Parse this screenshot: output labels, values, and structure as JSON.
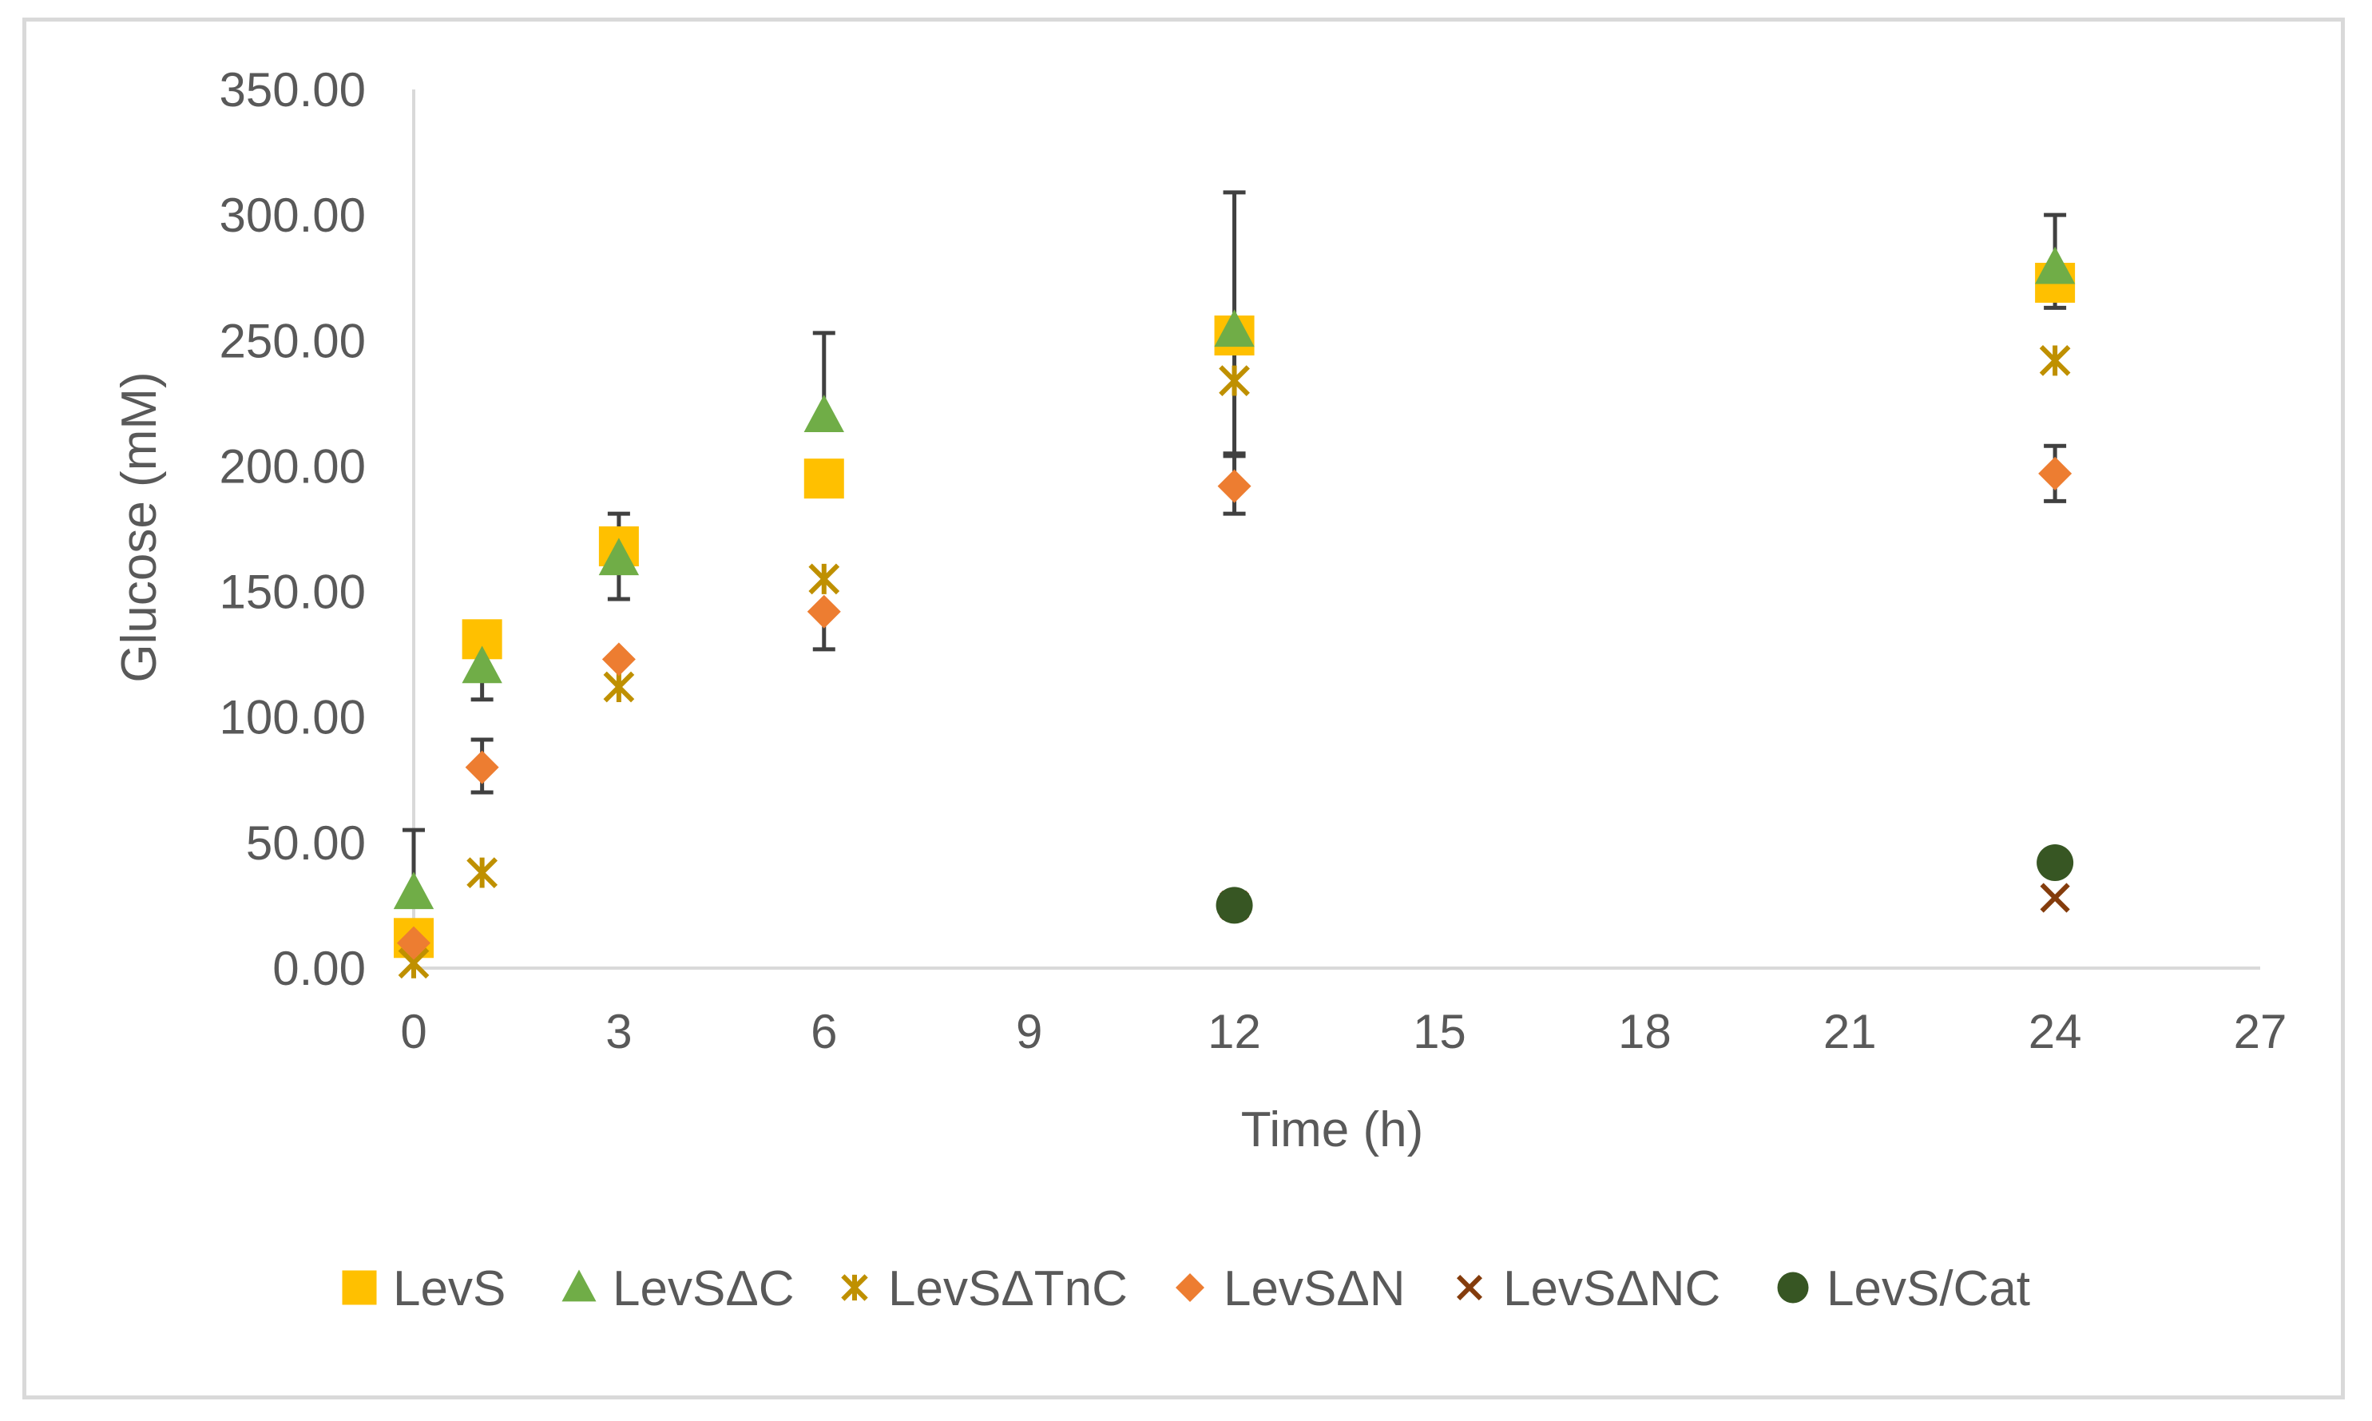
{
  "chart_data": {
    "type": "scatter",
    "title": "",
    "xlabel": "Time (h)",
    "ylabel": "Glucose (mM)",
    "xlim": [
      0,
      27
    ],
    "ylim": [
      0,
      350
    ],
    "x_ticks": [
      0,
      3,
      6,
      9,
      12,
      15,
      18,
      21,
      24,
      27
    ],
    "x_tick_labels": [
      "0",
      "3",
      "6",
      "9",
      "12",
      "15",
      "18",
      "21",
      "24",
      "27"
    ],
    "y_ticks": [
      0,
      50,
      100,
      150,
      200,
      250,
      300,
      350
    ],
    "y_tick_labels": [
      "0.00",
      "50.00",
      "100.00",
      "150.00",
      "200.00",
      "250.00",
      "300.00",
      "350.00"
    ],
    "grid": false,
    "legend_position": "bottom",
    "series": [
      {
        "name": "LevS",
        "marker": "square",
        "color": "#FFC000",
        "points": [
          {
            "x": 0,
            "y": 12,
            "err_plus": 0,
            "err_minus": 0
          },
          {
            "x": 1,
            "y": 131,
            "err_plus": 0,
            "err_minus": 0
          },
          {
            "x": 3,
            "y": 168,
            "err_plus": 0,
            "err_minus": 0
          },
          {
            "x": 6,
            "y": 195,
            "err_plus": 0,
            "err_minus": 0
          },
          {
            "x": 12,
            "y": 252,
            "err_plus": 57,
            "err_minus": 47
          },
          {
            "x": 24,
            "y": 273,
            "err_plus": 0,
            "err_minus": 10
          }
        ]
      },
      {
        "name": "LevSΔC",
        "marker": "triangle",
        "color": "#70AD47",
        "points": [
          {
            "x": 0,
            "y": 30,
            "err_plus": 25,
            "err_minus": 0
          },
          {
            "x": 1,
            "y": 120,
            "err_plus": 0,
            "err_minus": 13
          },
          {
            "x": 3,
            "y": 163,
            "err_plus": 18,
            "err_minus": 16
          },
          {
            "x": 6,
            "y": 220,
            "err_plus": 33,
            "err_minus": 0
          },
          {
            "x": 12,
            "y": 254,
            "err_plus": 0,
            "err_minus": 0
          },
          {
            "x": 24,
            "y": 279,
            "err_plus": 21,
            "err_minus": 0
          }
        ]
      },
      {
        "name": "LevSΔTnC",
        "marker": "asterisk",
        "color": "#BF9000",
        "points": [
          {
            "x": 0,
            "y": 2,
            "err_plus": 0,
            "err_minus": 0
          },
          {
            "x": 1,
            "y": 38,
            "err_plus": 0,
            "err_minus": 0
          },
          {
            "x": 3,
            "y": 112,
            "err_plus": 0,
            "err_minus": 0
          },
          {
            "x": 6,
            "y": 155,
            "err_plus": 0,
            "err_minus": 0
          },
          {
            "x": 12,
            "y": 234,
            "err_plus": 0,
            "err_minus": 0
          },
          {
            "x": 24,
            "y": 242,
            "err_plus": 0,
            "err_minus": 0
          }
        ]
      },
      {
        "name": "LevSΔN",
        "marker": "diamond",
        "color": "#ED7D31",
        "points": [
          {
            "x": 0,
            "y": 10,
            "err_plus": 0,
            "err_minus": 0
          },
          {
            "x": 1,
            "y": 80,
            "err_plus": 11,
            "err_minus": 10
          },
          {
            "x": 3,
            "y": 123,
            "err_plus": 0,
            "err_minus": 0
          },
          {
            "x": 6,
            "y": 142,
            "err_plus": 0,
            "err_minus": 15
          },
          {
            "x": 12,
            "y": 192,
            "err_plus": 12,
            "err_minus": 11
          },
          {
            "x": 24,
            "y": 197,
            "err_plus": 11,
            "err_minus": 11
          }
        ]
      },
      {
        "name": "LevSΔNC",
        "marker": "x",
        "color": "#843C0C",
        "points": [
          {
            "x": 12,
            "y": 25,
            "err_plus": 0,
            "err_minus": 0
          },
          {
            "x": 24,
            "y": 28,
            "err_plus": 0,
            "err_minus": 0
          }
        ]
      },
      {
        "name": "LevS/Cat",
        "marker": "circle",
        "color": "#375623",
        "points": [
          {
            "x": 12,
            "y": 25,
            "err_plus": 0,
            "err_minus": 0
          },
          {
            "x": 24,
            "y": 42,
            "err_plus": 0,
            "err_minus": 0
          }
        ]
      }
    ]
  }
}
